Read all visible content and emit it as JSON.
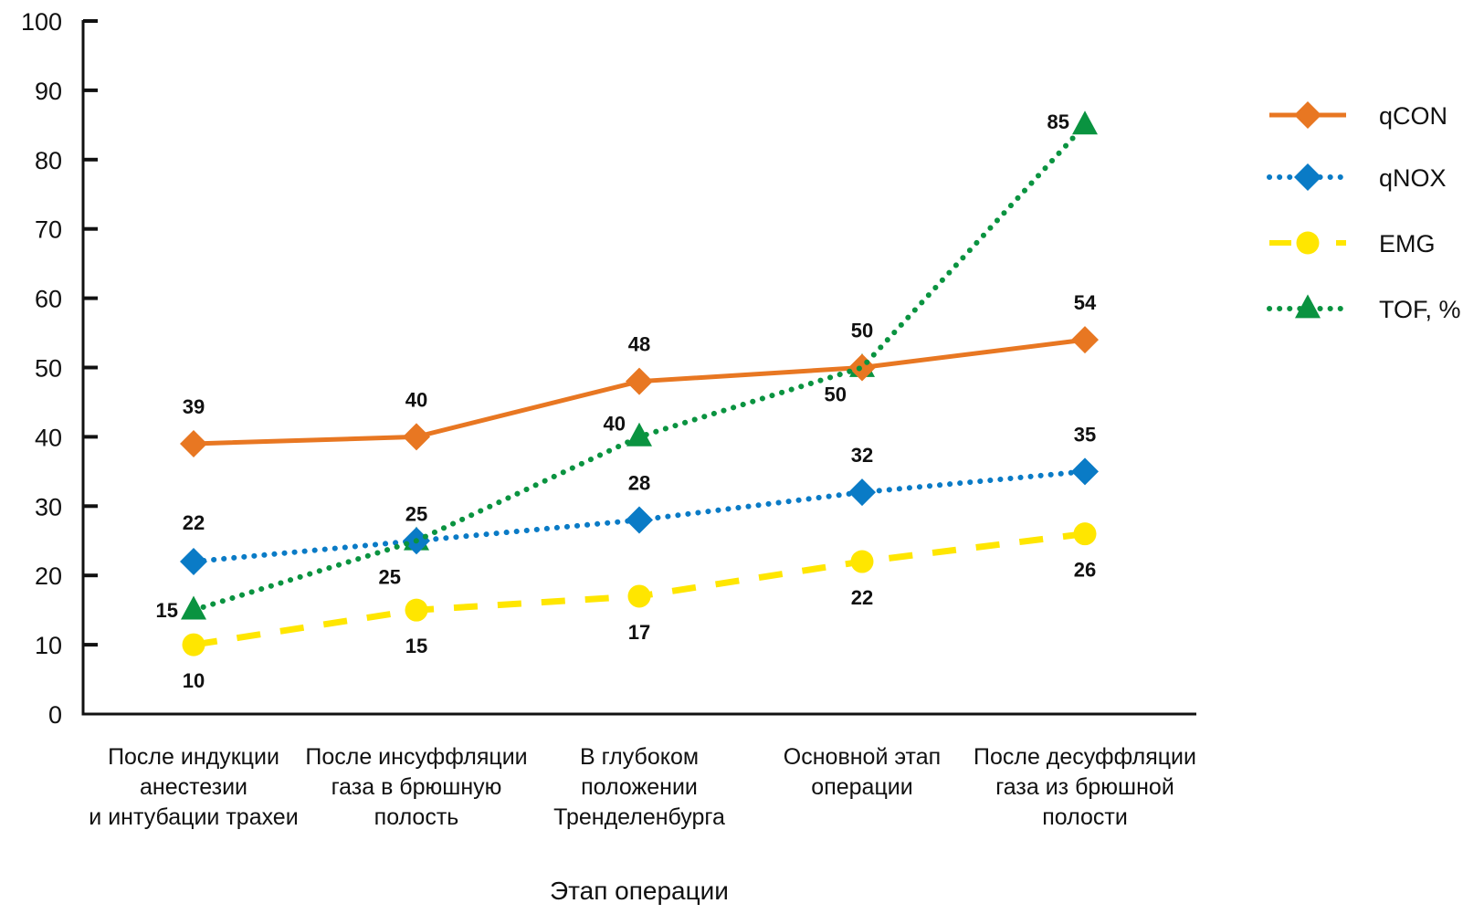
{
  "chart_data": {
    "type": "line",
    "title": "",
    "xlabel": "Этап операции",
    "ylabel": "",
    "ylim": [
      0,
      100
    ],
    "yticks": [
      0,
      10,
      20,
      30,
      40,
      50,
      60,
      70,
      80,
      90,
      100
    ],
    "grid": false,
    "legend_position": "right",
    "categories": [
      [
        "После индукции",
        "анестезии",
        "и интубации трахеи"
      ],
      [
        "После инсуффляции",
        "газа в брюшную",
        "полость"
      ],
      [
        "В глубоком",
        "положении",
        "Тренделенбурга"
      ],
      [
        "Основной этап",
        "операции"
      ],
      [
        "После десуффляции",
        "газа из брюшной",
        "полости"
      ]
    ],
    "series": [
      {
        "name": "qCON",
        "color": "#E87722",
        "line_style": "solid",
        "marker": "diamond",
        "values": [
          39,
          40,
          48,
          50,
          54
        ],
        "label_position": "above"
      },
      {
        "name": "qNOX",
        "color": "#0A7BC6",
        "line_style": "dotted",
        "marker": "diamond",
        "values": [
          22,
          25,
          28,
          32,
          35
        ],
        "label_position": "above"
      },
      {
        "name": "EMG",
        "color": "#FFE600",
        "line_style": "dashed",
        "marker": "circle",
        "values": [
          10,
          15,
          17,
          22,
          26
        ],
        "label_position": "below"
      },
      {
        "name": "TOF, %",
        "color": "#0A9340",
        "line_style": "dotted",
        "marker": "triangle",
        "values": [
          15,
          25,
          40,
          50,
          85
        ],
        "label_position": "left"
      }
    ]
  }
}
